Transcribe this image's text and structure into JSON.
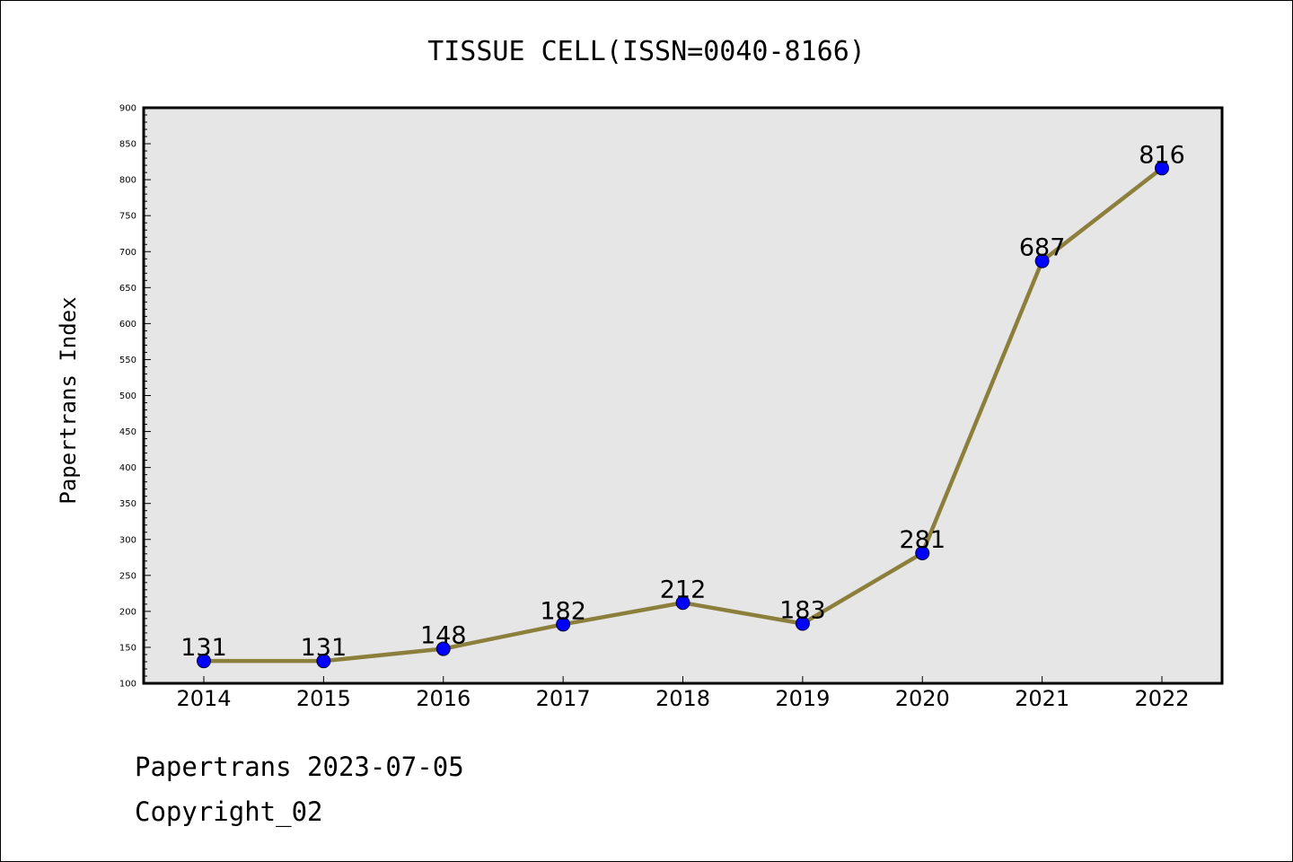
{
  "chart_data": {
    "type": "line",
    "title": "TISSUE CELL(ISSN=0040-8166)",
    "xlabel": "",
    "ylabel": "Papertrans Index",
    "categories": [
      "2014",
      "2015",
      "2016",
      "2017",
      "2018",
      "2019",
      "2020",
      "2021",
      "2022"
    ],
    "series": [
      {
        "values": [
          131,
          131,
          148,
          182,
          212,
          183,
          281,
          687,
          816
        ]
      }
    ],
    "ylim": [
      100,
      900
    ],
    "yticks": [
      100,
      150,
      200,
      250,
      300,
      350,
      400,
      450,
      500,
      550,
      600,
      650,
      700,
      750,
      800,
      850,
      900
    ],
    "grid": false,
    "legend": "none",
    "data_labels": true,
    "colors": {
      "line": "#8c7e3b",
      "marker_fill": "#0000ff",
      "marker_edge": "#000033",
      "plot_background": "#e6e6e6"
    }
  },
  "footer": {
    "source": "Papertrans 2023-07-05",
    "copyright": "Copyright_02"
  }
}
